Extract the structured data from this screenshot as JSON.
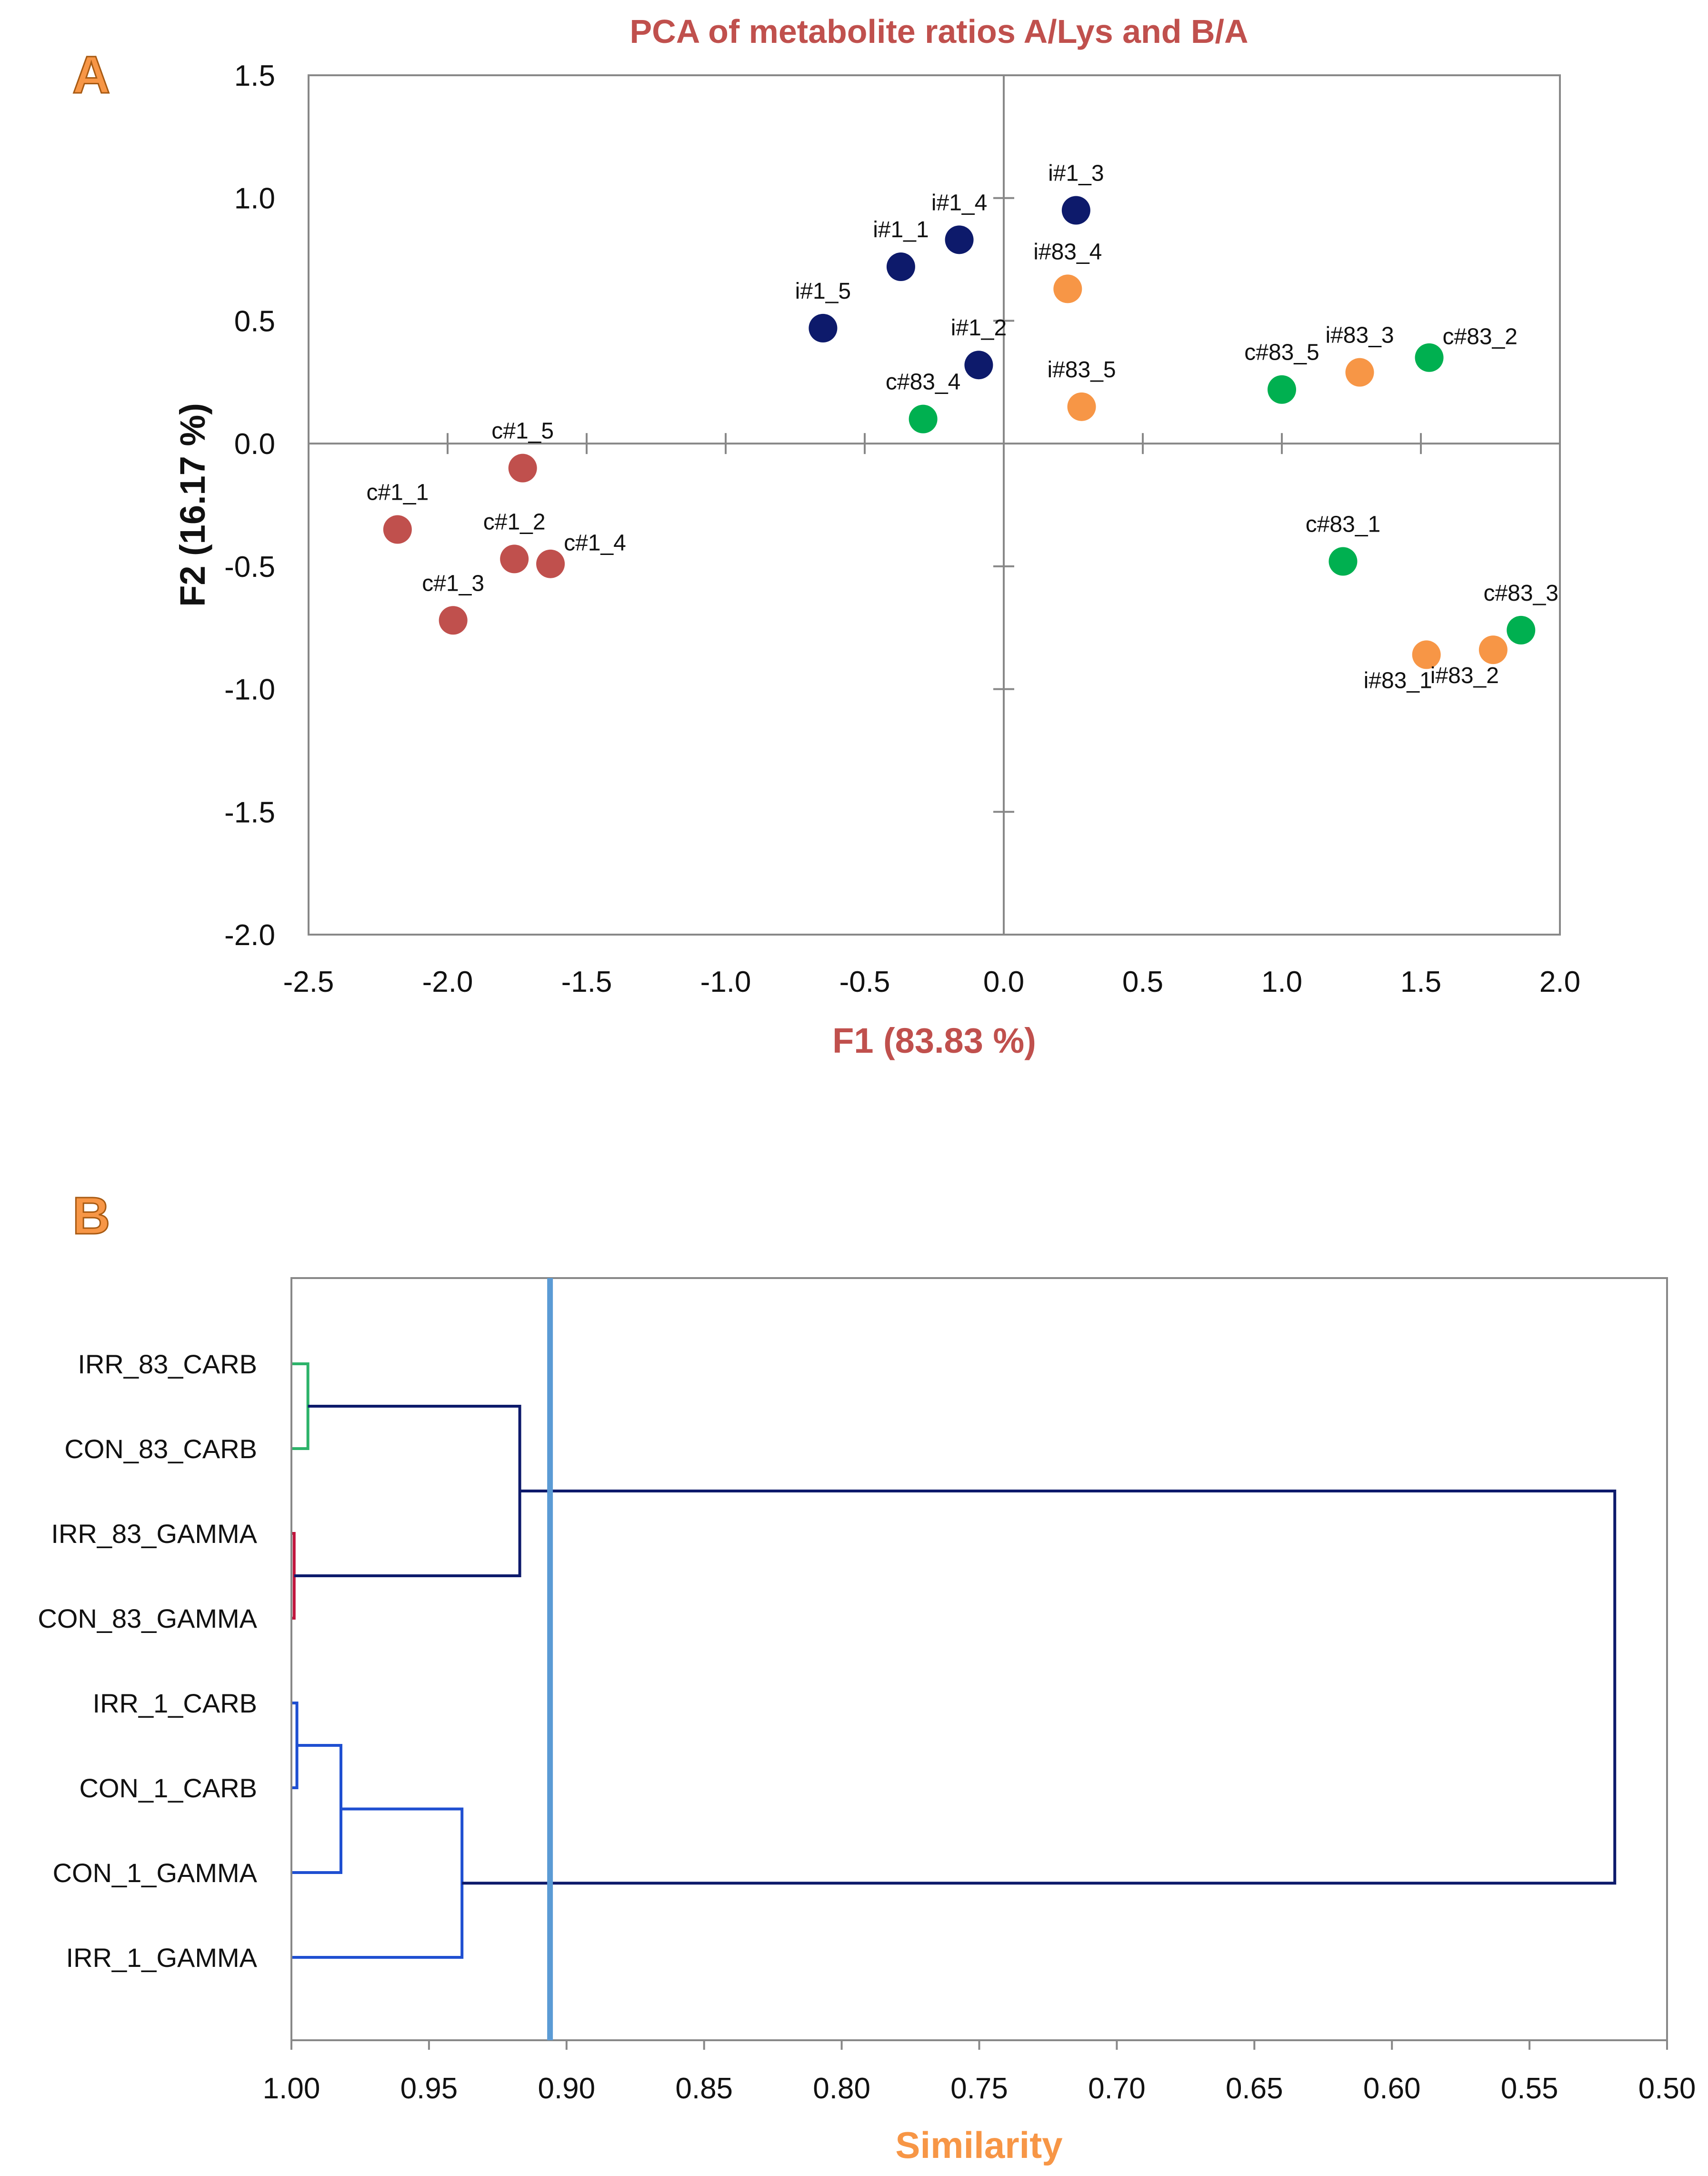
{
  "colors": {
    "title": "#c0504d",
    "f1_label": "#c0504d",
    "f2_label": "#111111",
    "similarity_label": "#f79646",
    "panel_letter": "#f79646",
    "c1": "#c0504d",
    "i1": "#0d1a6b",
    "c83": "#00b050",
    "i83": "#f79646",
    "dendro_top": "#0d1a6b",
    "dendro_green": "#2db36a",
    "dendro_red": "#c0143c",
    "dendro_blue": "#1f4fd1",
    "cutline": "#5b9bd5"
  },
  "chart_data": [
    {
      "panel": "A",
      "type": "scatter",
      "title": "PCA of metabolite ratios A/Lys and B/A",
      "xlabel": "F1 (83.83 %)",
      "ylabel": "F2 (16.17 %)",
      "xlim": [
        -2.5,
        2.0
      ],
      "ylim": [
        -2.0,
        1.5
      ],
      "xticks": [
        "-2.5",
        "-2.0",
        "-1.5",
        "-1.0",
        "-0.5",
        "0.0",
        "0.5",
        "1.0",
        "1.5",
        "2.0"
      ],
      "yticks": [
        "1.5",
        "1.0",
        "0.5",
        "0.0",
        "-0.5",
        "-1.0",
        "-1.5",
        "-2.0"
      ],
      "series": [
        {
          "name": "c#1",
          "color_key": "c1",
          "points": [
            {
              "label": "c#1_1",
              "x": -2.18,
              "y": -0.35,
              "lpos": "above"
            },
            {
              "label": "c#1_2",
              "x": -1.76,
              "y": -0.47,
              "lpos": "above"
            },
            {
              "label": "c#1_3",
              "x": -1.98,
              "y": -0.72,
              "lpos": "above"
            },
            {
              "label": "c#1_4",
              "x": -1.63,
              "y": -0.49,
              "lpos": "right"
            },
            {
              "label": "c#1_5",
              "x": -1.73,
              "y": -0.1,
              "lpos": "above"
            }
          ]
        },
        {
          "name": "i#1",
          "color_key": "i1",
          "points": [
            {
              "label": "i#1_1",
              "x": -0.37,
              "y": 0.72,
              "lpos": "above"
            },
            {
              "label": "i#1_2",
              "x": -0.09,
              "y": 0.32,
              "lpos": "above"
            },
            {
              "label": "i#1_3",
              "x": 0.26,
              "y": 0.95,
              "lpos": "above"
            },
            {
              "label": "i#1_4",
              "x": -0.16,
              "y": 0.83,
              "lpos": "above"
            },
            {
              "label": "i#1_5",
              "x": -0.65,
              "y": 0.47,
              "lpos": "above"
            }
          ]
        },
        {
          "name": "c#83",
          "color_key": "c83",
          "points": [
            {
              "label": "c#83_1",
              "x": 1.22,
              "y": -0.48,
              "lpos": "above"
            },
            {
              "label": "c#83_2",
              "x": 1.53,
              "y": 0.35,
              "lpos": "right"
            },
            {
              "label": "c#83_3",
              "x": 1.86,
              "y": -0.76,
              "lpos": "above"
            },
            {
              "label": "c#83_4",
              "x": -0.29,
              "y": 0.1,
              "lpos": "above"
            },
            {
              "label": "c#83_5",
              "x": 1.0,
              "y": 0.22,
              "lpos": "above"
            }
          ]
        },
        {
          "name": "i#83",
          "color_key": "i83",
          "points": [
            {
              "label": "i#83_1",
              "x": 1.52,
              "y": -0.86,
              "lpos": "below"
            },
            {
              "label": "i#83_2",
              "x": 1.76,
              "y": -0.84,
              "lpos": "below"
            },
            {
              "label": "i#83_3",
              "x": 1.28,
              "y": 0.29,
              "lpos": "above"
            },
            {
              "label": "i#83_4",
              "x": 0.23,
              "y": 0.63,
              "lpos": "above"
            },
            {
              "label": "i#83_5",
              "x": 0.28,
              "y": 0.15,
              "lpos": "above"
            }
          ]
        }
      ]
    },
    {
      "panel": "B",
      "type": "dendrogram",
      "xlabel": "Similarity",
      "xlim": [
        1.0,
        0.5
      ],
      "xticks": [
        "1.00",
        "0.95",
        "0.90",
        "0.85",
        "0.80",
        "0.75",
        "0.70",
        "0.65",
        "0.60",
        "0.55",
        "0.50"
      ],
      "cut_similarity": 0.906,
      "leaves": [
        "IRR_83_CARB",
        "CON_83_CARB",
        "IRR_83_GAMMA",
        "CON_83_GAMMA",
        "IRR_1_CARB",
        "CON_1_CARB",
        "CON_1_GAMMA",
        "IRR_1_GAMMA"
      ],
      "merges": [
        {
          "a": "leaf:0",
          "b": "leaf:1",
          "sim": 0.994,
          "color_key": "dendro_green"
        },
        {
          "a": "leaf:2",
          "b": "leaf:3",
          "sim": 0.999,
          "color_key": "dendro_red"
        },
        {
          "a": "merge:0",
          "b": "merge:1",
          "sim": 0.917,
          "color_key": "dendro_top"
        },
        {
          "a": "leaf:4",
          "b": "leaf:5",
          "sim": 0.998,
          "color_key": "dendro_blue"
        },
        {
          "a": "merge:3",
          "b": "leaf:6",
          "sim": 0.982,
          "color_key": "dendro_blue"
        },
        {
          "a": "merge:4",
          "b": "leaf:7",
          "sim": 0.938,
          "color_key": "dendro_blue"
        },
        {
          "a": "merge:2",
          "b": "merge:5",
          "sim": 0.519,
          "color_key": "dendro_top"
        }
      ]
    }
  ],
  "panel_a_letter": "A",
  "panel_b_letter": "B"
}
